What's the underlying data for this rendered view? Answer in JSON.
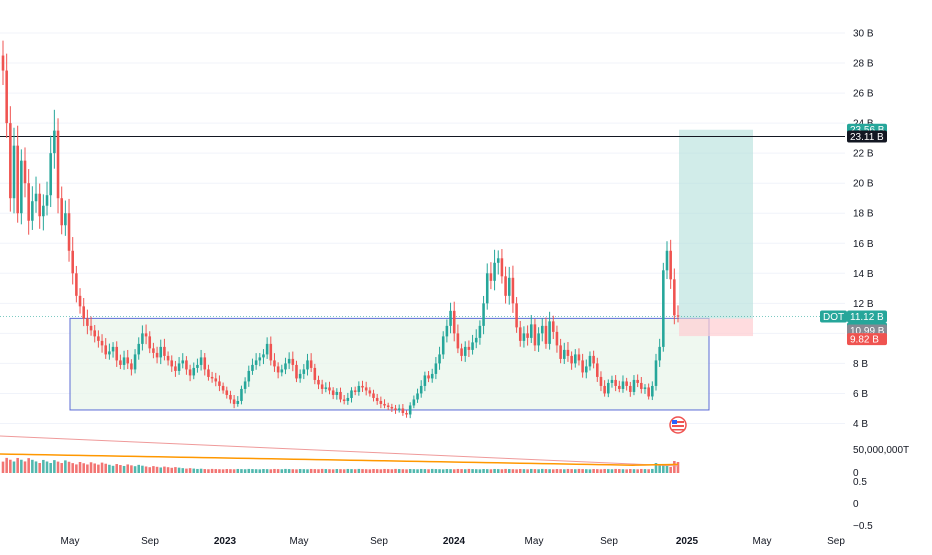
{
  "colors": {
    "up": "#26a69a",
    "down": "#ef5350",
    "grid": "#f0f3fa",
    "range_fill": "#e8f5e9",
    "range_border": "#5b6bd6",
    "target_zone": "#b2dfdb",
    "stop_zone": "#ffcdd2",
    "resistance_line": "#131722",
    "ma_orange": "#ff9800",
    "ma_red": "#ef9a9a",
    "vol_up": "#26a69a",
    "vol_down": "#ef5350"
  },
  "symbol_badge": "DOT",
  "price_badges": {
    "target": "23.56 B",
    "resistance": "23.11 B",
    "current": "11.12 B",
    "countdown": "6d 4h",
    "entry": "10.99 B",
    "stop": "9.82 B"
  },
  "price_axis": [
    "30 B",
    "28 B",
    "26 B",
    "24 B",
    "22 B",
    "20 B",
    "18 B",
    "16 B",
    "14 B",
    "12 B",
    "10 B",
    "8 B",
    "6 B",
    "4 B"
  ],
  "volume_axis": [
    "50,000,000T",
    "0"
  ],
  "osc_axis": [
    "0.5",
    "0",
    "−0.5"
  ],
  "time_axis": [
    {
      "label": "May",
      "bold": false
    },
    {
      "label": "Sep",
      "bold": false
    },
    {
      "label": "2023",
      "bold": true
    },
    {
      "label": "May",
      "bold": false
    },
    {
      "label": "Sep",
      "bold": false
    },
    {
      "label": "2024",
      "bold": true
    },
    {
      "label": "May",
      "bold": false
    },
    {
      "label": "Sep",
      "bold": false
    },
    {
      "label": "2025",
      "bold": true
    },
    {
      "label": "May",
      "bold": false
    },
    {
      "label": "Sep",
      "bold": false
    }
  ],
  "chart_data": {
    "type": "candlestick",
    "symbol": "DOT",
    "ylim": [
      3.3,
      31
    ],
    "x_ticks": [
      "May",
      "Sep",
      "2023",
      "May",
      "Sep",
      "2024",
      "May",
      "Sep",
      "2025",
      "May",
      "Sep"
    ],
    "range_box": {
      "low": 4.9,
      "high": 11.0
    },
    "resistance": 23.11,
    "long_position": {
      "entry": 10.99,
      "target": 23.56,
      "stop": 9.82
    },
    "last_price": 11.12,
    "closes": [
      27.5,
      24.0,
      19.0,
      22.5,
      18.0,
      21.5,
      20.0,
      17.5,
      18.8,
      19.3,
      17.8,
      18.5,
      19.2,
      22.0,
      23.5,
      19.0,
      17.2,
      18.0,
      15.5,
      14.0,
      12.5,
      11.8,
      11.0,
      10.5,
      10.2,
      9.8,
      9.5,
      9.2,
      8.6,
      8.8,
      9.1,
      8.2,
      7.9,
      8.4,
      8.0,
      7.6,
      8.6,
      9.3,
      10.0,
      9.8,
      9.0,
      8.7,
      8.4,
      9.1,
      8.5,
      8.2,
      7.8,
      7.5,
      8.0,
      8.2,
      7.6,
      7.2,
      7.7,
      7.9,
      8.4,
      7.6,
      7.1,
      7.0,
      6.8,
      6.5,
      6.2,
      5.9,
      5.6,
      5.3,
      5.5,
      6.3,
      6.8,
      7.5,
      7.9,
      8.2,
      8.4,
      8.6,
      9.3,
      8.2,
      7.8,
      7.4,
      7.6,
      8.0,
      8.3,
      7.9,
      7.0,
      7.3,
      7.6,
      8.2,
      7.7,
      6.9,
      6.6,
      6.3,
      6.4,
      6.2,
      5.9,
      6.1,
      5.6,
      5.5,
      5.7,
      6.2,
      6.1,
      6.5,
      6.4,
      6.2,
      6.0,
      5.7,
      5.5,
      5.3,
      5.2,
      5.1,
      5.0,
      4.9,
      5.0,
      4.7,
      4.6,
      5.2,
      5.6,
      6.0,
      6.5,
      7.2,
      7.0,
      7.3,
      8.0,
      8.6,
      9.8,
      10.5,
      11.5,
      10.0,
      9.0,
      8.5,
      9.1,
      8.9,
      9.4,
      9.7,
      10.5,
      12.0,
      14.0,
      13.5,
      14.7,
      15.0,
      13.8,
      12.5,
      13.7,
      12.0,
      10.4,
      9.5,
      10.0,
      9.7,
      10.6,
      9.2,
      10.0,
      10.5,
      9.3,
      10.8,
      10.1,
      9.2,
      8.3,
      8.9,
      8.5,
      8.0,
      8.6,
      8.2,
      7.4,
      7.8,
      8.5,
      8.0,
      7.1,
      6.5,
      6.0,
      6.7,
      6.9,
      6.5,
      6.3,
      6.8,
      6.5,
      6.1,
      6.9,
      6.7,
      6.3,
      6.4,
      5.8,
      6.5,
      8.2,
      9.1,
      14.2,
      15.5,
      13.6,
      11.2,
      11.12
    ],
    "volume_note": "volume histogram with moving averages",
    "osc_ticks": [
      0.5,
      0,
      -0.5
    ]
  }
}
